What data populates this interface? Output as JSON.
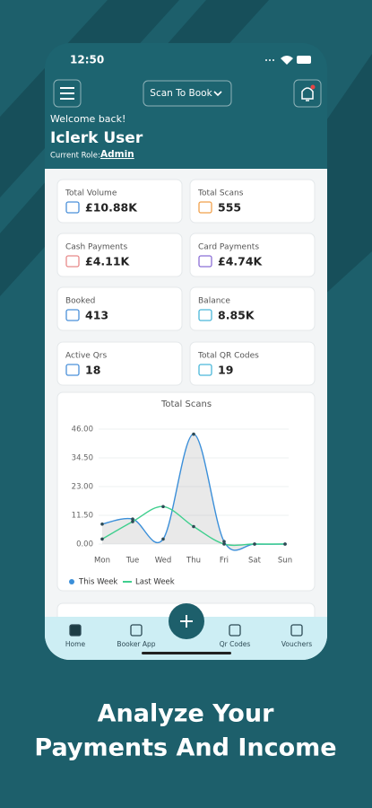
{
  "status_bar": {
    "time": "12:50"
  },
  "header": {
    "dropdown": "Scan To Book"
  },
  "welcome": {
    "greeting": "Welcome back!",
    "user": "Iclerk User",
    "role_label": "Current Role:",
    "role": "Admin"
  },
  "cards": [
    {
      "label": "Total Volume",
      "value": "£10.88K"
    },
    {
      "label": "Total Scans",
      "value": "555"
    },
    {
      "label": "Cash Payments",
      "value": "£4.11K"
    },
    {
      "label": "Card Payments",
      "value": "£4.74K"
    },
    {
      "label": "Booked",
      "value": "413"
    },
    {
      "label": "Balance",
      "value": "8.85K"
    },
    {
      "label": "Active Qrs",
      "value": "18"
    },
    {
      "label": "Total QR Codes",
      "value": "19"
    }
  ],
  "chart_data": {
    "type": "line",
    "title": "Total Scans",
    "categories": [
      "Mon",
      "Tue",
      "Wed",
      "Thu",
      "Fri",
      "Sat",
      "Sun"
    ],
    "series": [
      {
        "name": "This Week",
        "color": "#3b8fd9",
        "values": [
          8,
          10,
          2,
          44,
          1,
          0,
          0
        ]
      },
      {
        "name": "Last Week",
        "color": "#3fcf8e",
        "values": [
          2,
          9,
          15,
          7,
          0,
          0,
          0
        ]
      }
    ],
    "ylim": [
      0,
      46
    ],
    "yticks": [
      {
        "value": 0,
        "label": "0.00"
      },
      {
        "value": 11.5,
        "label": "11.50"
      },
      {
        "value": 23,
        "label": "23.00"
      },
      {
        "value": 34.5,
        "label": "34.50"
      },
      {
        "value": 46,
        "label": "46.00"
      }
    ],
    "grid": true
  },
  "tabs": [
    "Home",
    "Booker App",
    "Qr Codes",
    "Vouchers"
  ],
  "tagline": [
    "Analyze Your",
    "Payments And Income"
  ]
}
